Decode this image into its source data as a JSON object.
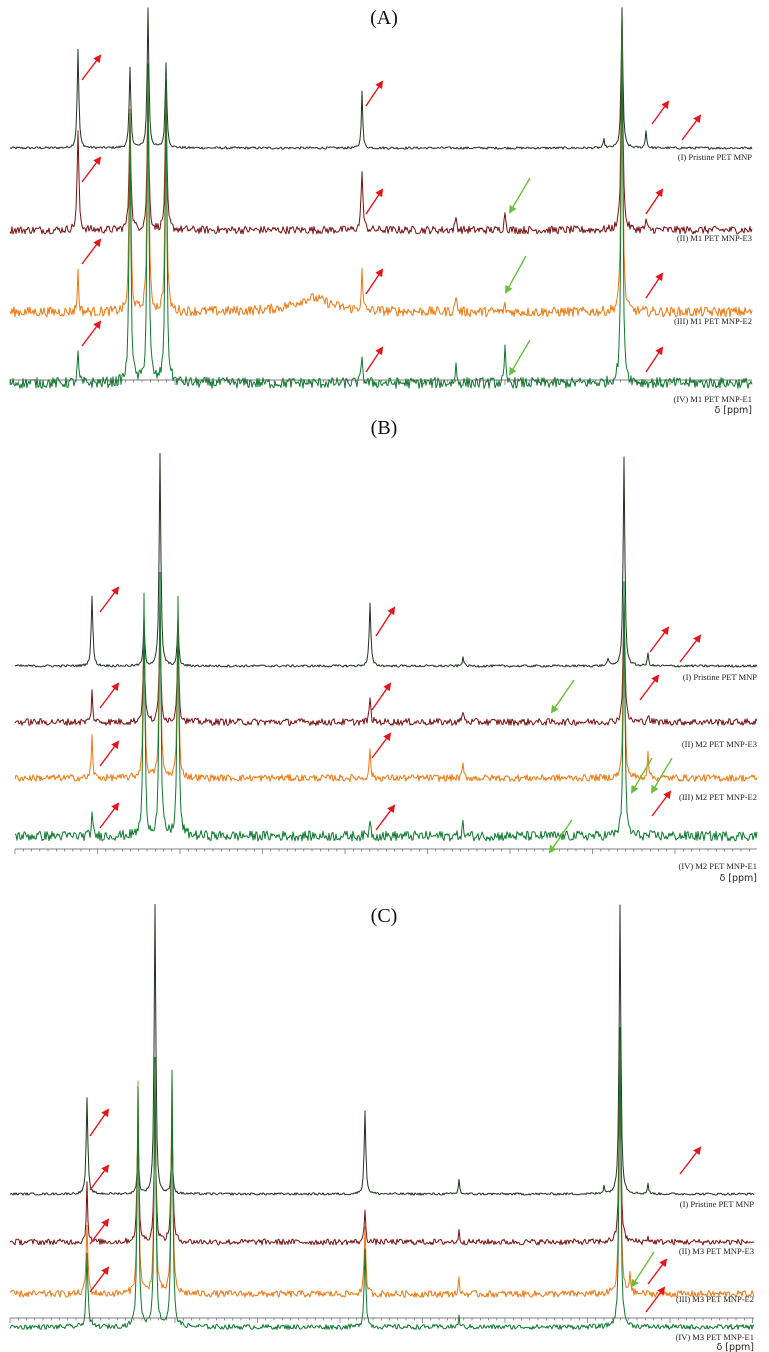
{
  "colors": {
    "pristine": "#1f3320",
    "E3": "#7a1010",
    "E2": "#f07810",
    "E1": "#0d7a2e",
    "arrow_red": "#e8141c",
    "arrow_green": "#6cbf3a",
    "axis": "#555555"
  },
  "axis_label": "δ [ppm]",
  "chart_data": [
    {
      "type": "line",
      "title": "(A)",
      "xlabel": "δ [ppm]",
      "series": [
        {
          "name": "(I) Pristine PET MNP"
        },
        {
          "name": "(II) M1 PET MNP-E3"
        },
        {
          "name": "(III) M1 PET MNP-E2"
        },
        {
          "name": "(IV) M1 PET MNP-E1"
        }
      ]
    },
    {
      "type": "line",
      "title": "(B)",
      "xlabel": "δ [ppm]",
      "series": [
        {
          "name": "(I) Pristine PET MNP"
        },
        {
          "name": "(II) M2 PET MNP-E3"
        },
        {
          "name": "(III) M2 PET MNP-E2"
        },
        {
          "name": "(IV) M2 PET MNP-E1"
        }
      ]
    },
    {
      "type": "line",
      "title": "(C)",
      "xlabel": "δ [ppm]",
      "series": [
        {
          "name": "(I) Pristine PET MNP"
        },
        {
          "name": "(II) M3 PET MNP-E3"
        },
        {
          "name": "(III) M3 PET MNP-E2"
        },
        {
          "name": "(IV) M3 PET MNP-E1"
        }
      ]
    }
  ]
}
